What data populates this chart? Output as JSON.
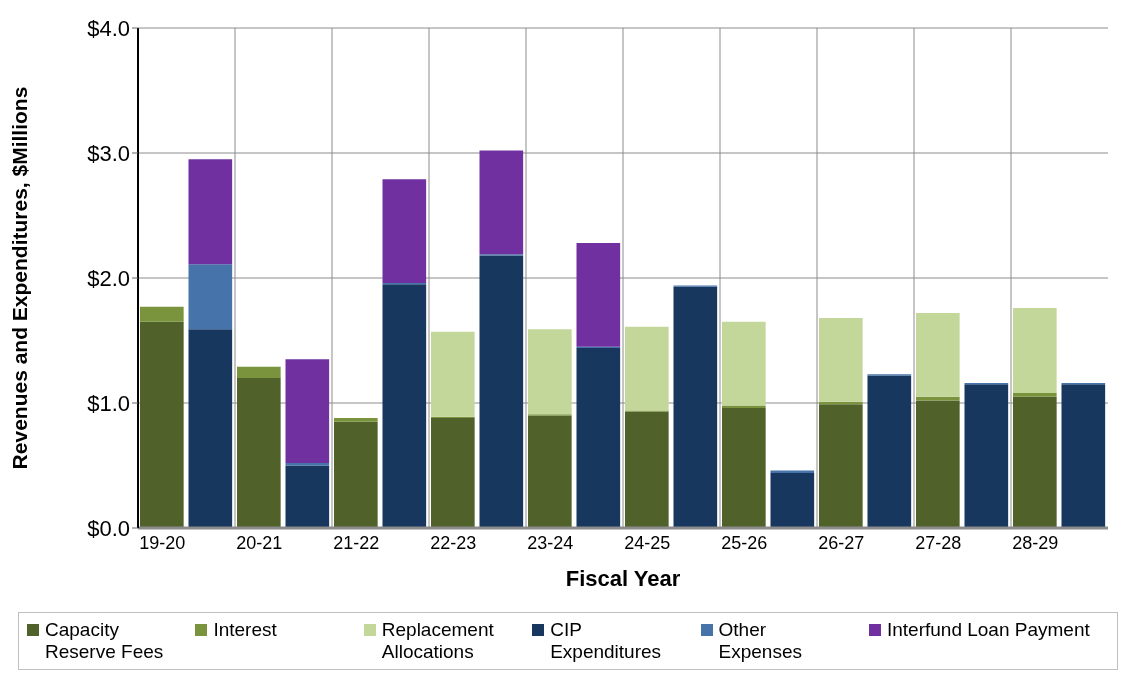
{
  "chart_data": {
    "type": "bar",
    "stacked": true,
    "xlabel": "Fiscal Year",
    "ylabel": "Revenues and Expenditures, $Millions",
    "categories": [
      "19-20",
      null,
      "20-21",
      null,
      "21-22",
      null,
      "22-23",
      null,
      "23-24",
      null,
      "24-25",
      null,
      "25-26",
      null,
      "26-27",
      null,
      "27-28",
      null,
      "28-29",
      null
    ],
    "series": [
      {
        "name": "Capacity Reserve Fees",
        "color": "#50622a",
        "values": [
          1.65,
          null,
          1.2,
          null,
          0.85,
          null,
          0.88,
          null,
          0.9,
          null,
          0.93,
          null,
          0.96,
          null,
          0.99,
          null,
          1.02,
          null,
          1.05,
          null
        ]
      },
      {
        "name": "Interest",
        "color": "#7a943e",
        "values": [
          0.12,
          null,
          0.09,
          null,
          0.03,
          null,
          0.01,
          null,
          0.01,
          null,
          0.01,
          null,
          0.02,
          null,
          0.02,
          null,
          0.03,
          null,
          0.03,
          null
        ]
      },
      {
        "name": "Replacement Allocations",
        "color": "#c4d79b",
        "values": [
          0,
          null,
          0,
          null,
          0,
          null,
          0.68,
          null,
          0.68,
          null,
          0.67,
          null,
          0.67,
          null,
          0.67,
          null,
          0.67,
          null,
          0.68,
          null
        ]
      },
      {
        "name": "CIP Expenditures",
        "color": "#17375e",
        "values": [
          null,
          1.59,
          null,
          0.5,
          null,
          1.95,
          null,
          2.18,
          null,
          1.44,
          null,
          1.93,
          null,
          0.44,
          null,
          1.22,
          null,
          1.15,
          null,
          1.15
        ]
      },
      {
        "name": "Other Expenses",
        "color": "#4674aa",
        "values": [
          null,
          0.52,
          null,
          0.02,
          null,
          0.01,
          null,
          0.01,
          null,
          0.01,
          null,
          0.01,
          null,
          0.02,
          null,
          0.01,
          null,
          0.01,
          null,
          0.01
        ]
      },
      {
        "name": "Interfund Loan Payment",
        "color": "#7030a0",
        "values": [
          null,
          0.84,
          null,
          0.83,
          null,
          0.83,
          null,
          0.83,
          null,
          0.83,
          null,
          0,
          null,
          0,
          null,
          0,
          null,
          0,
          null,
          0
        ]
      }
    ],
    "ylim": [
      0,
      4
    ],
    "yticks": [
      {
        "value": 0,
        "label": "$0.0"
      },
      {
        "value": 1,
        "label": "$1.0"
      },
      {
        "value": 2,
        "label": "$2.0"
      },
      {
        "value": 3,
        "label": "$3.0"
      },
      {
        "value": 4,
        "label": "$4.0"
      }
    ],
    "grid": true,
    "legend": "bottom"
  }
}
